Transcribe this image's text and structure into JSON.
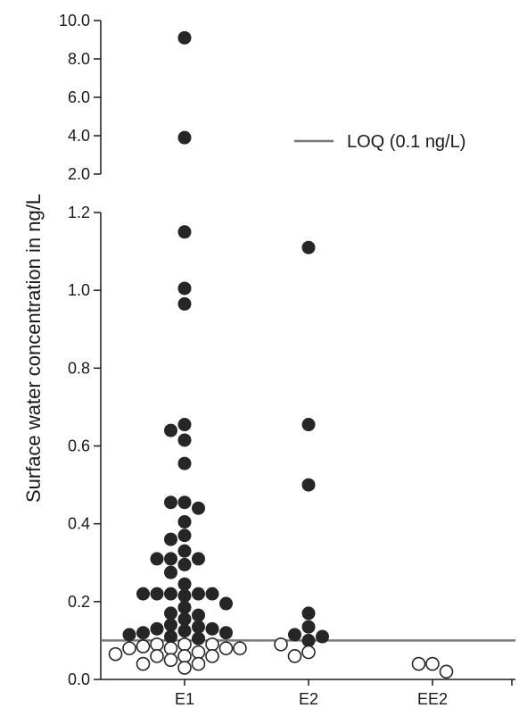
{
  "chart_data": {
    "type": "scatter",
    "ylabel": "Surface water concentration in ng/L",
    "categories": [
      "E1",
      "E2",
      "EE2"
    ],
    "y_axis": {
      "segments": [
        {
          "range": [
            0.0,
            1.2
          ],
          "ticks": [
            "0.0",
            "0.2",
            "0.4",
            "0.6",
            "0.8",
            "1.0",
            "1.2"
          ],
          "tick_values": [
            0.0,
            0.2,
            0.4,
            0.6,
            0.8,
            1.0,
            1.2
          ]
        },
        {
          "range": [
            2.0,
            10.0
          ],
          "ticks": [
            "2.0",
            "4.0",
            "6.0",
            "8.0",
            "10.0"
          ],
          "tick_values": [
            2.0,
            4.0,
            6.0,
            8.0,
            10.0
          ]
        }
      ],
      "broken": true
    },
    "reference_line": {
      "label": "LOQ (0.1 ng/L)",
      "value": 0.1,
      "color": "#777777"
    },
    "legend_position": "top-right",
    "filled_color": "#262626",
    "open_color": "#262626",
    "series": [
      {
        "category": "E1",
        "above_loq": [
          9.1,
          3.9,
          1.15,
          1.005,
          0.965,
          0.655,
          0.64,
          0.615,
          0.555,
          0.455,
          0.455,
          0.44,
          0.405,
          0.37,
          0.36,
          0.33,
          0.31,
          0.31,
          0.31,
          0.295,
          0.275,
          0.245,
          0.22,
          0.22,
          0.22,
          0.22,
          0.22,
          0.215,
          0.195,
          0.185,
          0.17,
          0.165,
          0.155,
          0.14,
          0.135,
          0.13,
          0.13,
          0.125,
          0.12,
          0.12,
          0.115,
          0.11,
          0.105
        ],
        "below_loq": [
          0.09,
          0.09,
          0.09,
          0.085,
          0.08,
          0.08,
          0.08,
          0.08,
          0.07,
          0.065,
          0.06,
          0.06,
          0.06,
          0.05,
          0.04,
          0.04,
          0.03
        ]
      },
      {
        "category": "E2",
        "above_loq": [
          1.11,
          0.655,
          0.5,
          0.17,
          0.135,
          0.115,
          0.11,
          0.1
        ],
        "below_loq": [
          0.09,
          0.07,
          0.06
        ]
      },
      {
        "category": "EE2",
        "above_loq": [],
        "below_loq": [
          0.04,
          0.04,
          0.02
        ]
      }
    ]
  }
}
